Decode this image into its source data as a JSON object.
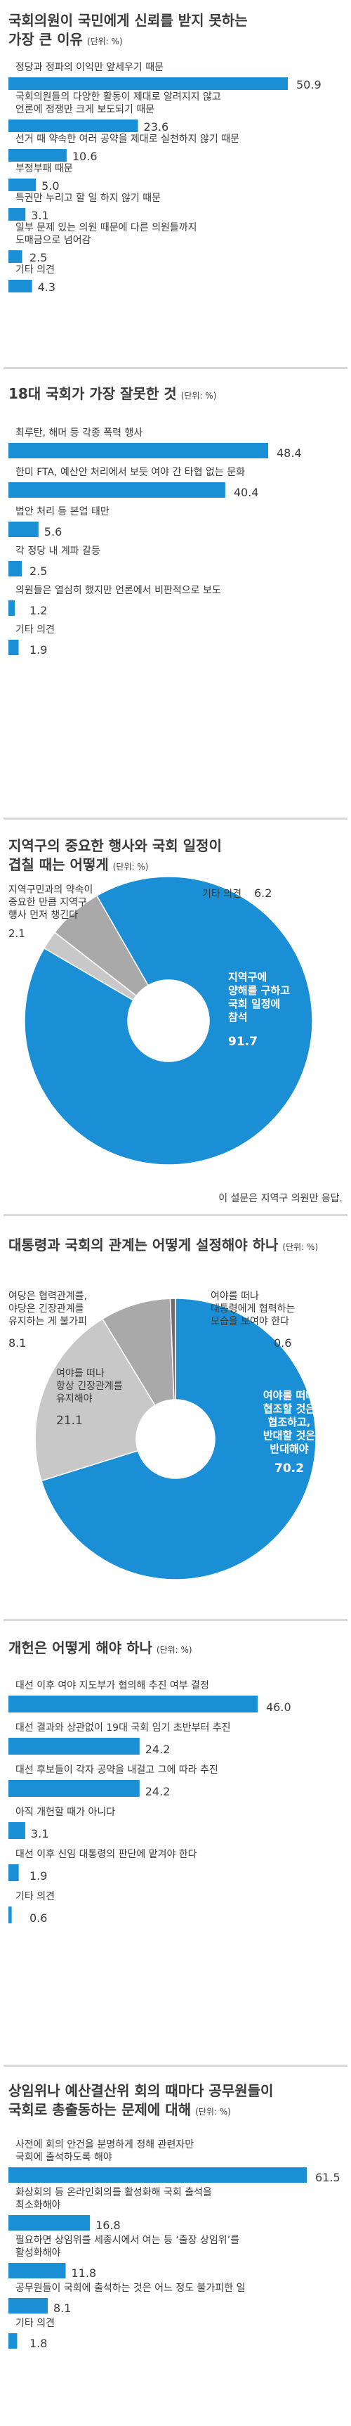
{
  "colors": {
    "accent": "#1a8fd6",
    "light_gray": "#c8c8c8",
    "mid_gray": "#a9a9a9",
    "dark_gray": "#6f6f6f",
    "divider": "#d9d9d9",
    "text": "#3a3a3a"
  },
  "chart_data": [
    {
      "type": "bar",
      "title": "국회의원이 국민에게 신뢰를 받지 못하는 가장 큰 이유",
      "unit": "(단위: %)",
      "categories": [
        "정당과 정파의 이익만 앞세우기 때문",
        "국회의원들의 다양한 활동이 제대로 알려지지 않고 언론에 정쟁만 크게 보도되기 때문",
        "선거 때 약속한 여러 공약을 제대로 실천하지 않기 때문",
        "부정부패 때문",
        "특권만 누리고 할 일 하지 않기 때문",
        "일부 문제 있는 의원 때문에 다른 의원들까지 도매금으로 넘어감",
        "기타 의견"
      ],
      "values": [
        50.9,
        23.6,
        10.6,
        5.0,
        3.1,
        2.5,
        4.3
      ],
      "value_labels": [
        "50.9",
        "23.6",
        "10.6",
        "5.0",
        "3.1",
        "2.5",
        "4.3"
      ]
    },
    {
      "type": "bar",
      "title": "18대 국회가 가장 잘못한 것",
      "unit": "(단위: %)",
      "categories": [
        "최루탄, 해머 등 각종 폭력 행사",
        "한미 FTA, 예산안 처리에서 보듯 여야 간 타협 없는 문화",
        "법안 처리 등 본업 태만",
        "각 정당 내 계파 갈등",
        "의원들은 열심히 했지만 언론에서 비판적으로 보도",
        "기타 의견"
      ],
      "values": [
        48.4,
        40.4,
        5.6,
        2.5,
        1.2,
        1.9
      ],
      "value_labels": [
        "48.4",
        "40.4",
        "5.6",
        "2.5",
        "1.2",
        "1.9"
      ]
    },
    {
      "type": "pie",
      "title": "지역구의 중요한 행사와 국회 일정이 겹칠 때는 어떻게",
      "unit": "(단위: %)",
      "slices": [
        {
          "label": "지역구에 양해를 구하고 국회 일정에 참석",
          "value": 91.7,
          "value_label": "91.7",
          "color": "#1a8fd6"
        },
        {
          "label": "지역구민과의 약속이 중요한 만큼 지역구 행사 먼저 챙긴다",
          "value": 2.1,
          "value_label": "2.1",
          "color": "#c8c8c8"
        },
        {
          "label": "기타 의견",
          "value": 6.2,
          "value_label": "6.2",
          "color": "#a9a9a9"
        }
      ],
      "note": "이 설문은 지역구 의원만 응답."
    },
    {
      "type": "pie",
      "title": "대통령과 국회의 관계는 어떻게 설정해야 하나",
      "unit": "(단위: %)",
      "slices": [
        {
          "label": "여야를 떠나 협조할 것은 협조하고, 반대할 것은 반대해야",
          "value": 70.2,
          "value_label": "70.2",
          "color": "#1a8fd6"
        },
        {
          "label": "여야를 떠나 항상 긴장관계를 유지해야",
          "value": 21.1,
          "value_label": "21.1",
          "color": "#c8c8c8"
        },
        {
          "label": "여당은 협력관계를, 야당은 긴장관계를 유지하는 게 불가피",
          "value": 8.1,
          "value_label": "8.1",
          "color": "#a9a9a9"
        },
        {
          "label": "여야를 떠나 대통령에게 협력하는 모습을 보여야 한다",
          "value": 0.6,
          "value_label": "0.6",
          "color": "#6f6f6f"
        }
      ]
    },
    {
      "type": "bar",
      "title": "개헌은 어떻게 해야 하나",
      "unit": "(단위: %)",
      "categories": [
        "대선 이후 여야 지도부가 협의해 추진 여부 결정",
        "대선 결과와 상관없이 19대 국회 임기 초반부터 추진",
        "대선 후보들이 각자 공약을 내걸고 그에 따라 추진",
        "아직 개헌할 때가 아니다",
        "대선 이후 신임 대통령의 판단에 맡겨야 한다",
        "기타 의견"
      ],
      "values": [
        46.0,
        24.2,
        24.2,
        3.1,
        1.9,
        0.6
      ],
      "value_labels": [
        "46.0",
        "24.2",
        "24.2",
        "3.1",
        "1.9",
        "0.6"
      ]
    },
    {
      "type": "bar",
      "title": "상임위나 예산결산위 회의 때마다 공무원들이 국회로 총출동하는 문제에 대해",
      "unit": "(단위: %)",
      "categories": [
        "사전에 회의 안건을 분명하게 정해 관련자만 국회에 출석하도록 해야",
        "화상회의 등 온라인회의를 활성화해 국회 출석을 최소화해야",
        "필요하면 상임위를 세종시에서 여는 등 '출장 상임위'를 활성화해야",
        "공무원들이 국회에 출석하는 것은 어느 정도 불가피한 일",
        "기타 의견"
      ],
      "values": [
        61.5,
        16.8,
        11.8,
        8.1,
        1.8
      ],
      "value_labels": [
        "61.5",
        "16.8",
        "11.8",
        "8.1",
        "1.8"
      ]
    }
  ]
}
